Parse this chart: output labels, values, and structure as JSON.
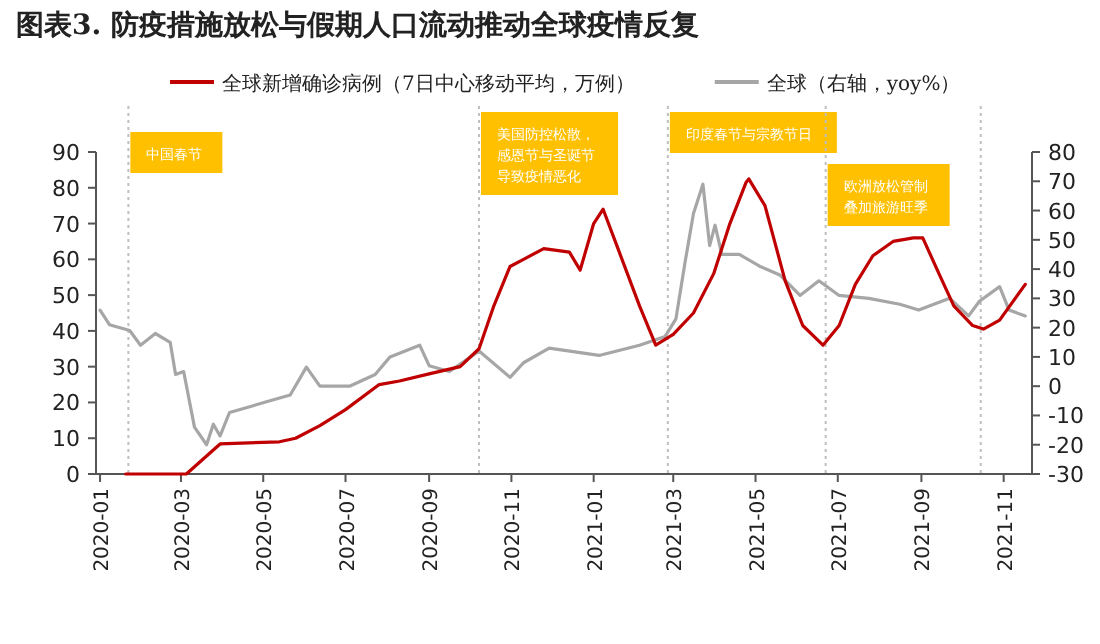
{
  "chart_data": {
    "type": "line",
    "title": "图表3.  防疫措施放松与假期人口流动推动全球疫情反复",
    "xlim": [
      "2019-12-29",
      "2021-11-22"
    ],
    "xticks": [
      "2020-01",
      "2020-03",
      "2020-05",
      "2020-07",
      "2020-09",
      "2020-11",
      "2021-01",
      "2021-03",
      "2021-05",
      "2021-07",
      "2021-09",
      "2021-11"
    ],
    "ylim": [
      0,
      90
    ],
    "yticks": [
      0,
      10,
      20,
      30,
      40,
      50,
      60,
      70,
      80,
      90
    ],
    "y2lim": [
      -30,
      80
    ],
    "y2ticks": [
      -30,
      -20,
      -10,
      0,
      10,
      20,
      30,
      40,
      50,
      60,
      70,
      80
    ],
    "legend": "top",
    "grid": false,
    "marker": "none",
    "series": [
      {
        "name": "全球新增确诊病例（7日中心移动平均，万例）",
        "color": "#c00000",
        "x": [
          "2020-01-20",
          "2020-03-05",
          "2020-03-30",
          "2020-05-13",
          "2020-05-25",
          "2020-06-12",
          "2020-07-01",
          "2020-07-26",
          "2020-08-10",
          "2020-09-01",
          "2020-09-24",
          "2020-10-08",
          "2020-10-19",
          "2020-10-31",
          "2020-11-10",
          "2020-11-25",
          "2020-12-14",
          "2020-12-22",
          "2021-01-01",
          "2021-01-08",
          "2021-01-20",
          "2021-02-04",
          "2021-02-16",
          "2021-03-01",
          "2021-03-16",
          "2021-03-31",
          "2021-04-12",
          "2021-04-24",
          "2021-04-26",
          "2021-05-08",
          "2021-05-23",
          "2021-06-05",
          "2021-06-20",
          "2021-07-02",
          "2021-07-14",
          "2021-07-27",
          "2021-08-11",
          "2021-08-26",
          "2021-09-02",
          "2021-09-14",
          "2021-09-25",
          "2021-10-09",
          "2021-10-17",
          "2021-10-29",
          "2021-11-17"
        ],
        "values": [
          0,
          0,
          8.4,
          9,
          10,
          13.5,
          18,
          25,
          26,
          28,
          30,
          35,
          47,
          58,
          60,
          63,
          62,
          57,
          70,
          74,
          62,
          47,
          36,
          39,
          45,
          56,
          70,
          81.5,
          82.5,
          75,
          54,
          41.5,
          36,
          41.5,
          53,
          61,
          65,
          66,
          66,
          56,
          47,
          41.5,
          40.5,
          43,
          53
        ]
      },
      {
        "name": "全球（右轴，yoy%）",
        "color": "#a6a6a6",
        "axis": "y2",
        "x": [
          "2020-01-01",
          "2020-01-08",
          "2020-01-23",
          "2020-01-31",
          "2020-02-11",
          "2020-02-22",
          "2020-02-26",
          "2020-03-03",
          "2020-03-11",
          "2020-03-20",
          "2020-03-25",
          "2020-03-30",
          "2020-04-06",
          "2020-04-21",
          "2020-05-06",
          "2020-05-21",
          "2020-06-02",
          "2020-06-12",
          "2020-07-04",
          "2020-07-23",
          "2020-08-03",
          "2020-08-25",
          "2020-09-01",
          "2020-09-16",
          "2020-10-08",
          "2020-10-31",
          "2020-11-10",
          "2020-11-29",
          "2021-01-05",
          "2021-02-04",
          "2021-02-23",
          "2021-03-03",
          "2021-03-10",
          "2021-03-16",
          "2021-03-23",
          "2021-03-28",
          "2021-04-01",
          "2021-04-06",
          "2021-04-19",
          "2021-05-04",
          "2021-05-19",
          "2021-06-03",
          "2021-06-17",
          "2021-07-02",
          "2021-07-24",
          "2021-08-16",
          "2021-08-30",
          "2021-09-22",
          "2021-10-06",
          "2021-10-14",
          "2021-10-29",
          "2021-11-05",
          "2021-11-17"
        ],
        "values": [
          26,
          21,
          19,
          14,
          18,
          15,
          4,
          5,
          -14,
          -20,
          -13,
          -17,
          -9,
          -7,
          -5,
          -3,
          6.5,
          0,
          0,
          4,
          10,
          14,
          7,
          5,
          12,
          3,
          8,
          13,
          10.5,
          14,
          17,
          23,
          43,
          59,
          69,
          48,
          55,
          45,
          45,
          41,
          38,
          31,
          36,
          31,
          30,
          28,
          26,
          30,
          24,
          29,
          34,
          26,
          24
        ]
      }
    ],
    "line_style": "solid",
    "ref_lines": [
      {
        "axis": "x",
        "value": "2020-01-22",
        "label": "中国春节",
        "color": "#bfbfbf",
        "line_style": "dotted"
      },
      {
        "axis": "x",
        "value": "2020-10-08",
        "label": "美国防控松散，感恩节与圣诞节导致疫情恶化",
        "color": "#bfbfbf",
        "line_style": "dotted"
      },
      {
        "axis": "x",
        "value": "2021-02-25",
        "label": "印度春节与宗教节日",
        "color": "#bfbfbf",
        "line_style": "dotted"
      },
      {
        "axis": "x",
        "value": "2021-06-22",
        "label": "欧洲放松管制叠加旅游旺季",
        "color": "#bfbfbf",
        "line_style": "dotted"
      },
      {
        "axis": "x",
        "value": "2021-10-15",
        "color": "#bfbfbf",
        "line_style": "dotted"
      }
    ]
  }
}
